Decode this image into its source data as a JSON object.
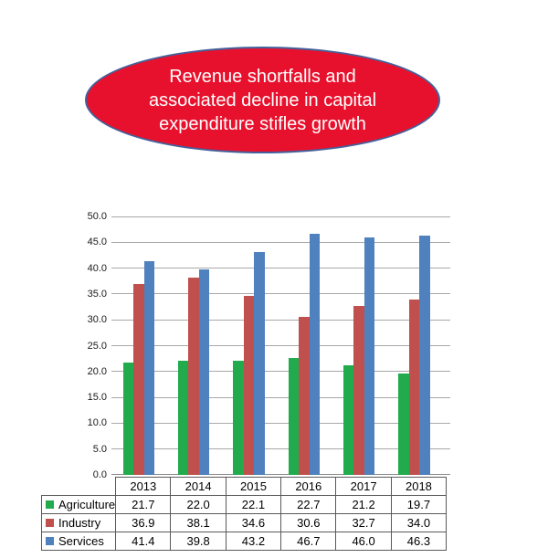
{
  "callout": {
    "text_lines": [
      "Revenue shortfalls and",
      "associated decline in capital",
      "expenditure stifles growth"
    ],
    "fill_color": "#E8112D",
    "border_color": "#44619B",
    "text_color": "#FFFFFF"
  },
  "chart_data": {
    "type": "bar",
    "title": "",
    "categories": [
      "2013",
      "2014",
      "2015",
      "2016",
      "2017",
      "2018"
    ],
    "series": [
      {
        "name": "Agriculture",
        "color": "#22AB4D",
        "values": [
          21.7,
          22.0,
          22.1,
          22.7,
          21.2,
          19.7
        ]
      },
      {
        "name": "Industry",
        "color": "#C0504D",
        "values": [
          36.9,
          38.1,
          34.6,
          30.6,
          32.7,
          34.0
        ]
      },
      {
        "name": "Services",
        "color": "#4E81BD",
        "values": [
          41.4,
          39.8,
          43.2,
          46.7,
          46.0,
          46.3
        ]
      }
    ],
    "ylim": [
      0,
      50
    ],
    "ytick_step": 5,
    "ytick_labels": [
      "0.0",
      "5.0",
      "10.0",
      "15.0",
      "20.0",
      "25.0",
      "30.0",
      "35.0",
      "40.0",
      "45.0",
      "50.0"
    ],
    "grid": true,
    "gridline_color": "#A8A8A8",
    "axis_line_color": "#8C8C8C",
    "legend_position": "data-table-left",
    "data_table": true,
    "value_decimals": 1
  }
}
